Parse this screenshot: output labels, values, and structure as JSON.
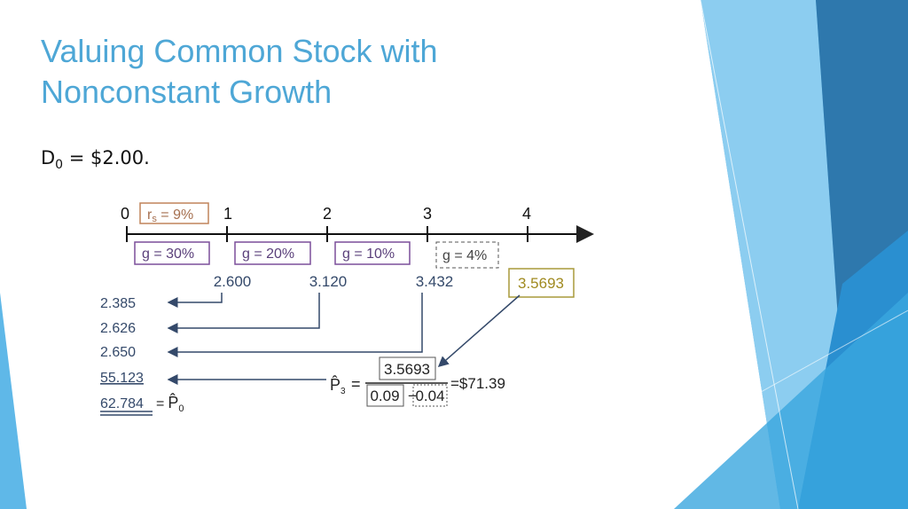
{
  "header": {
    "title_lines": [
      "Valuing Common Stock with",
      "Nonconstant Growth"
    ]
  },
  "given": {
    "symbol": "D",
    "subscript": "0",
    "rest": " = $2.00."
  },
  "timeline": {
    "periods": [
      "0",
      "1",
      "2",
      "3",
      "4"
    ],
    "rate": {
      "symbol": "r",
      "subscript": "s",
      "rest": " = 9%"
    },
    "growth": [
      "g = 30%",
      "g = 20%",
      "g = 10%",
      "g = 4%"
    ],
    "dividends": [
      "2.600",
      "3.120",
      "3.432",
      "3.5693"
    ]
  },
  "present_values": [
    "2.385",
    "2.626",
    "2.650",
    "55.123",
    "62.784"
  ],
  "price_today": {
    "equals": "=",
    "symbol": "P̂",
    "subscript": "0"
  },
  "terminal": {
    "symbol": "P̂",
    "subscript": "3",
    "equals": "=",
    "numerator": "3.5693",
    "rate": "0.09",
    "minus": "−",
    "growth": "0.04",
    "result": "=$71.39"
  }
}
